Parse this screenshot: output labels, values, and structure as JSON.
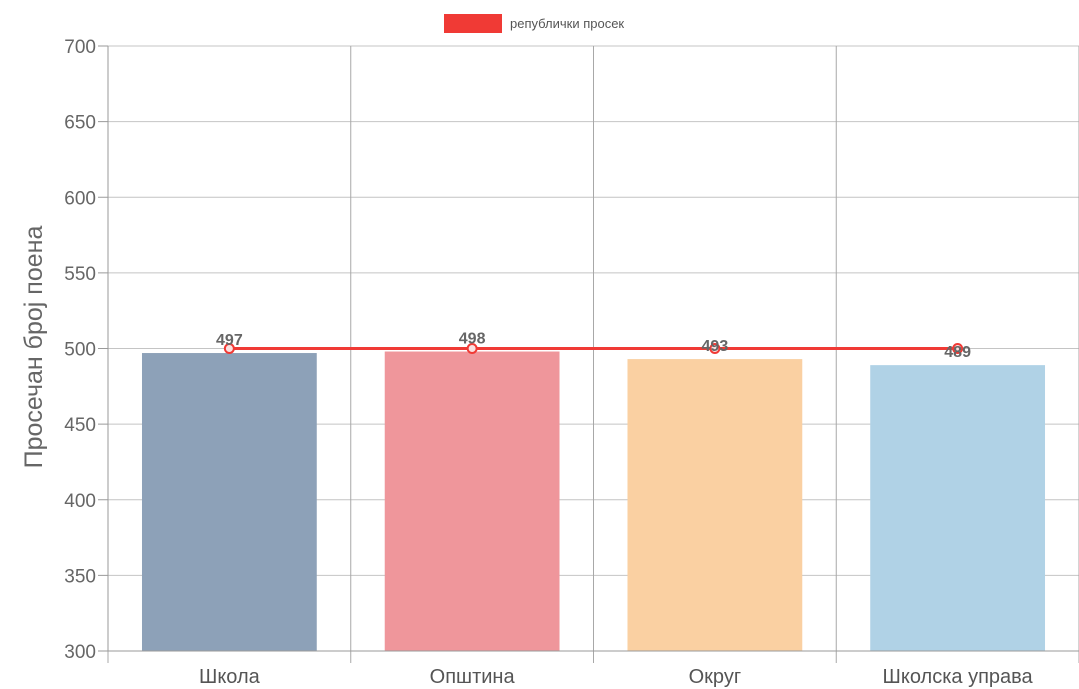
{
  "chart_data": {
    "type": "bar",
    "categories": [
      "Школа",
      "Општина",
      "Округ",
      "Школска управа"
    ],
    "values": [
      497,
      498,
      493,
      489
    ],
    "value_labels": [
      "497",
      "498",
      "493",
      "489"
    ],
    "bar_colors": [
      "#8da1b8",
      "#ef969b",
      "#fad0a2",
      "#b0d2e6"
    ],
    "reference_line": {
      "name": "републички просек",
      "value": 500,
      "color": "#f03a35"
    },
    "ylabel": "Просечан број поена",
    "ylim": [
      300,
      700
    ],
    "yticks": [
      300,
      350,
      400,
      450,
      500,
      550,
      600,
      650,
      700
    ],
    "grid": true,
    "legend_position": "top-center"
  }
}
